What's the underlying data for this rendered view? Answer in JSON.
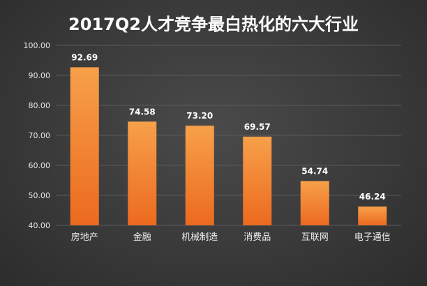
{
  "chart_data": {
    "type": "bar",
    "title": "2017Q2人才竞争最白热化的六大行业",
    "xlabel": "",
    "ylabel": "",
    "categories": [
      "房地产",
      "金融",
      "机械制造",
      "消费品",
      "互联网",
      "电子通信"
    ],
    "values": [
      92.69,
      74.58,
      73.2,
      69.57,
      54.74,
      46.24
    ],
    "data_labels": [
      "92.69",
      "74.58",
      "73.20",
      "69.57",
      "54.74",
      "46.24"
    ],
    "ylim": [
      40,
      100
    ],
    "yticks": [
      40,
      50,
      60,
      70,
      80,
      90,
      100
    ],
    "ytick_labels": [
      "40.00",
      "50.00",
      "60.00",
      "70.00",
      "80.00",
      "90.00",
      "100.00"
    ],
    "grid": true,
    "legend": "none",
    "colors": {
      "bar_top": "#f7a04a",
      "bar_bottom": "#ec6a1f",
      "text": "#ffffff"
    }
  }
}
